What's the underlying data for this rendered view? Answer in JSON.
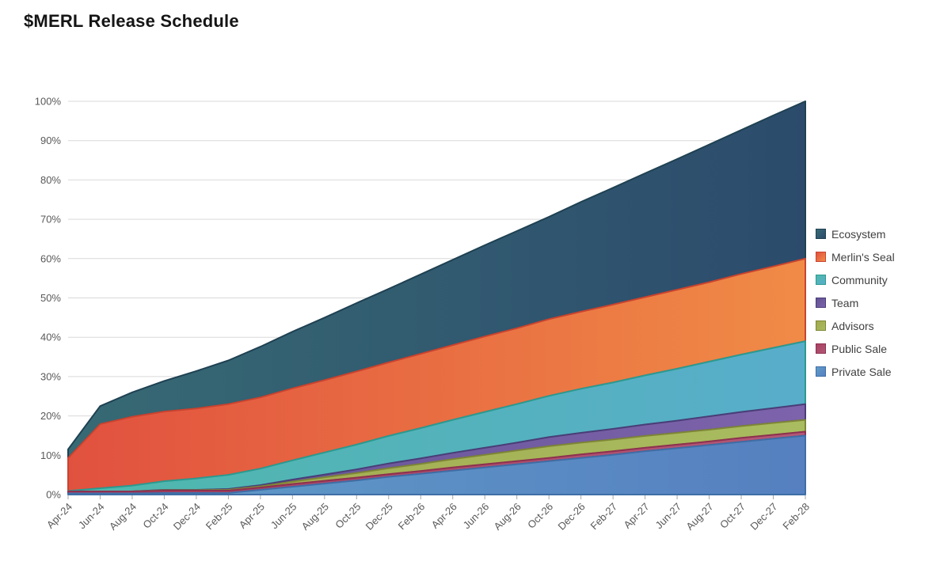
{
  "title": "$MERL Release Schedule",
  "colors": {
    "background": "#ffffff",
    "gridline": "#d9d9d9",
    "baseline": "#cfcfcf",
    "tick": "#a6a6a6",
    "axis_label": "#595959",
    "title_text": "#151515",
    "legend_text": "#404040"
  },
  "chart_data": {
    "type": "area",
    "stacked": true,
    "title": "$MERL Release Schedule",
    "unit": "%",
    "ylim": [
      0,
      100
    ],
    "y_ticks": [
      0,
      10,
      20,
      30,
      40,
      50,
      60,
      70,
      80,
      90,
      100
    ],
    "y_tick_suffix": "%",
    "grid": "horizontal",
    "legend_position": "right",
    "x_label_rotation": -45,
    "categories": [
      "Apr-24",
      "Jun-24",
      "Aug-24",
      "Oct-24",
      "Dec-24",
      "Feb-25",
      "Apr-25",
      "Jun-25",
      "Aug-25",
      "Oct-25",
      "Dec-25",
      "Feb-26",
      "Apr-26",
      "Jun-26",
      "Aug-26",
      "Oct-26",
      "Dec-26",
      "Feb-27",
      "Apr-27",
      "Jun-27",
      "Aug-27",
      "Oct-27",
      "Dec-27",
      "Feb-28"
    ],
    "series_order_note": "listed top-of-stack first, matching legend order",
    "series": [
      {
        "name": "Ecosystem",
        "final_pct": 40,
        "color_start": "#376a74",
        "color_end": "#2c4b6c",
        "stroke": "#1f4152",
        "values": [
          2.2,
          4.6,
          6.2,
          7.8,
          9.5,
          11.1,
          12.9,
          14.4,
          15.9,
          17.4,
          18.7,
          20.2,
          21.7,
          23.2,
          24.7,
          26.0,
          27.9,
          29.7,
          31.5,
          33.2,
          35.0,
          36.6,
          38.4,
          40.0
        ]
      },
      {
        "name": "Merlin's Seal",
        "final_pct": 21,
        "color_start": "#e1513f",
        "color_end": "#f08b46",
        "stroke": "#c94430",
        "values": [
          8.4,
          16.3,
          17.5,
          17.7,
          17.8,
          18.0,
          18.1,
          18.3,
          18.4,
          18.6,
          18.7,
          18.9,
          19.0,
          19.2,
          19.3,
          19.5,
          19.6,
          19.8,
          19.9,
          20.1,
          20.2,
          20.5,
          20.7,
          21.0
        ]
      },
      {
        "name": "Community",
        "final_pct": 16,
        "color_start": "#4fb8ab",
        "color_end": "#58adcb",
        "stroke": "#2b9a90",
        "values": [
          0.1,
          0.8,
          1.5,
          2.2,
          2.9,
          3.6,
          4.2,
          4.9,
          5.6,
          6.3,
          7.0,
          7.7,
          8.4,
          9.1,
          9.8,
          10.5,
          11.2,
          11.8,
          12.5,
          13.2,
          13.9,
          14.6,
          15.3,
          16.0
        ]
      },
      {
        "name": "Team",
        "final_pct": 4,
        "color_start": "#615292",
        "color_end": "#7d63ab",
        "stroke": "#4a3d78",
        "values": [
          0,
          0,
          0,
          0.1,
          0.1,
          0.2,
          0.3,
          0.5,
          0.7,
          0.9,
          1.2,
          1.4,
          1.6,
          1.8,
          2.0,
          2.3,
          2.5,
          2.7,
          2.9,
          3.1,
          3.4,
          3.6,
          3.8,
          4.0
        ]
      },
      {
        "name": "Advisors",
        "final_pct": 3,
        "color_start": "#a2a84d",
        "color_end": "#a9bc60",
        "stroke": "#7e8636",
        "values": [
          0,
          0,
          0,
          0.1,
          0.1,
          0.2,
          0.3,
          0.6,
          0.9,
          1.2,
          1.5,
          1.8,
          2.1,
          2.4,
          2.7,
          3.0,
          3.0,
          3.0,
          3.0,
          3.0,
          3.0,
          3.0,
          3.0,
          3.0
        ]
      },
      {
        "name": "Public Sale",
        "final_pct": 1,
        "color_start": "#a84061",
        "color_end": "#b25876",
        "stroke": "#8e3050",
        "values": [
          0.5,
          0.5,
          0.5,
          0.6,
          0.6,
          0.6,
          0.6,
          0.7,
          0.7,
          0.7,
          0.7,
          0.7,
          0.8,
          0.8,
          0.8,
          0.8,
          0.9,
          0.9,
          0.9,
          0.9,
          0.9,
          1.0,
          1.0,
          1.0
        ]
      },
      {
        "name": "Private Sale",
        "final_pct": 15,
        "color_start": "#609dc8",
        "color_end": "#5680c0",
        "stroke": "#3f6ea6",
        "values": [
          0.3,
          0.3,
          0.3,
          0.4,
          0.4,
          0.4,
          1.2,
          2.0,
          2.8,
          3.6,
          4.5,
          5.3,
          6.1,
          6.9,
          7.7,
          8.5,
          9.3,
          10.1,
          11.0,
          11.8,
          12.6,
          13.4,
          14.2,
          15.0
        ]
      }
    ]
  }
}
